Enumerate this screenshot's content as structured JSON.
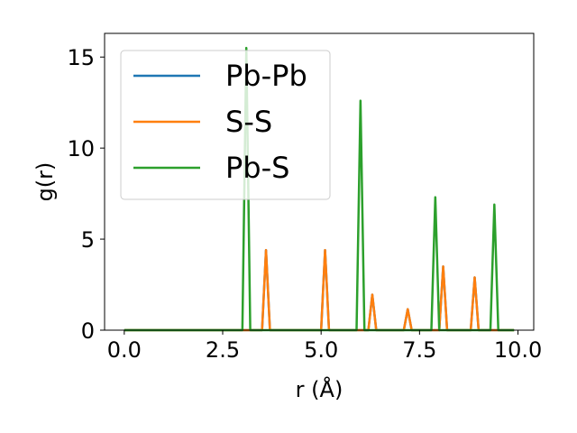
{
  "chart_data": {
    "type": "line",
    "title": "",
    "xlabel": "r (Å)",
    "ylabel": "g(r)",
    "xlim": [
      -0.5,
      10.4
    ],
    "ylim": [
      0,
      16.3
    ],
    "xticks": [
      0.0,
      2.5,
      5.0,
      7.5,
      10.0
    ],
    "xtick_labels": [
      "0.0",
      "2.5",
      "5.0",
      "7.5",
      "10.0"
    ],
    "yticks": [
      0,
      5,
      10,
      15
    ],
    "ytick_labels": [
      "0",
      "5",
      "10",
      "15"
    ],
    "grid": false,
    "legend_position": "top-left",
    "series": [
      {
        "name": "Pb-Pb",
        "color": "#1f77b4",
        "x": [
          0.0,
          3.5,
          3.6,
          3.7,
          5.0,
          5.1,
          5.2,
          6.2,
          6.3,
          6.4,
          7.1,
          7.2,
          7.3,
          8.0,
          8.1,
          8.2,
          8.8,
          8.9,
          9.0,
          9.9
        ],
        "y": [
          0,
          0,
          4.4,
          0,
          0,
          4.4,
          0,
          0,
          1.95,
          0,
          0,
          1.15,
          0,
          0,
          3.5,
          0,
          0,
          2.9,
          0,
          0
        ]
      },
      {
        "name": "S-S",
        "color": "#ff7f0e",
        "x": [
          0.0,
          3.5,
          3.6,
          3.7,
          5.0,
          5.1,
          5.2,
          6.2,
          6.3,
          6.4,
          7.1,
          7.2,
          7.3,
          8.0,
          8.1,
          8.2,
          8.8,
          8.9,
          9.0,
          9.9
        ],
        "y": [
          0,
          0,
          4.4,
          0,
          0,
          4.4,
          0,
          0,
          1.95,
          0,
          0,
          1.15,
          0,
          0,
          3.5,
          0,
          0,
          2.9,
          0,
          0
        ]
      },
      {
        "name": "Pb-S",
        "color": "#2ca02c",
        "x": [
          0.0,
          3.0,
          3.1,
          3.2,
          5.9,
          6.0,
          6.1,
          7.8,
          7.9,
          8.0,
          9.3,
          9.4,
          9.5,
          9.9
        ],
        "y": [
          0,
          0,
          15.5,
          0,
          0,
          12.6,
          0,
          0,
          7.3,
          0,
          0,
          6.9,
          0,
          0
        ]
      }
    ]
  }
}
